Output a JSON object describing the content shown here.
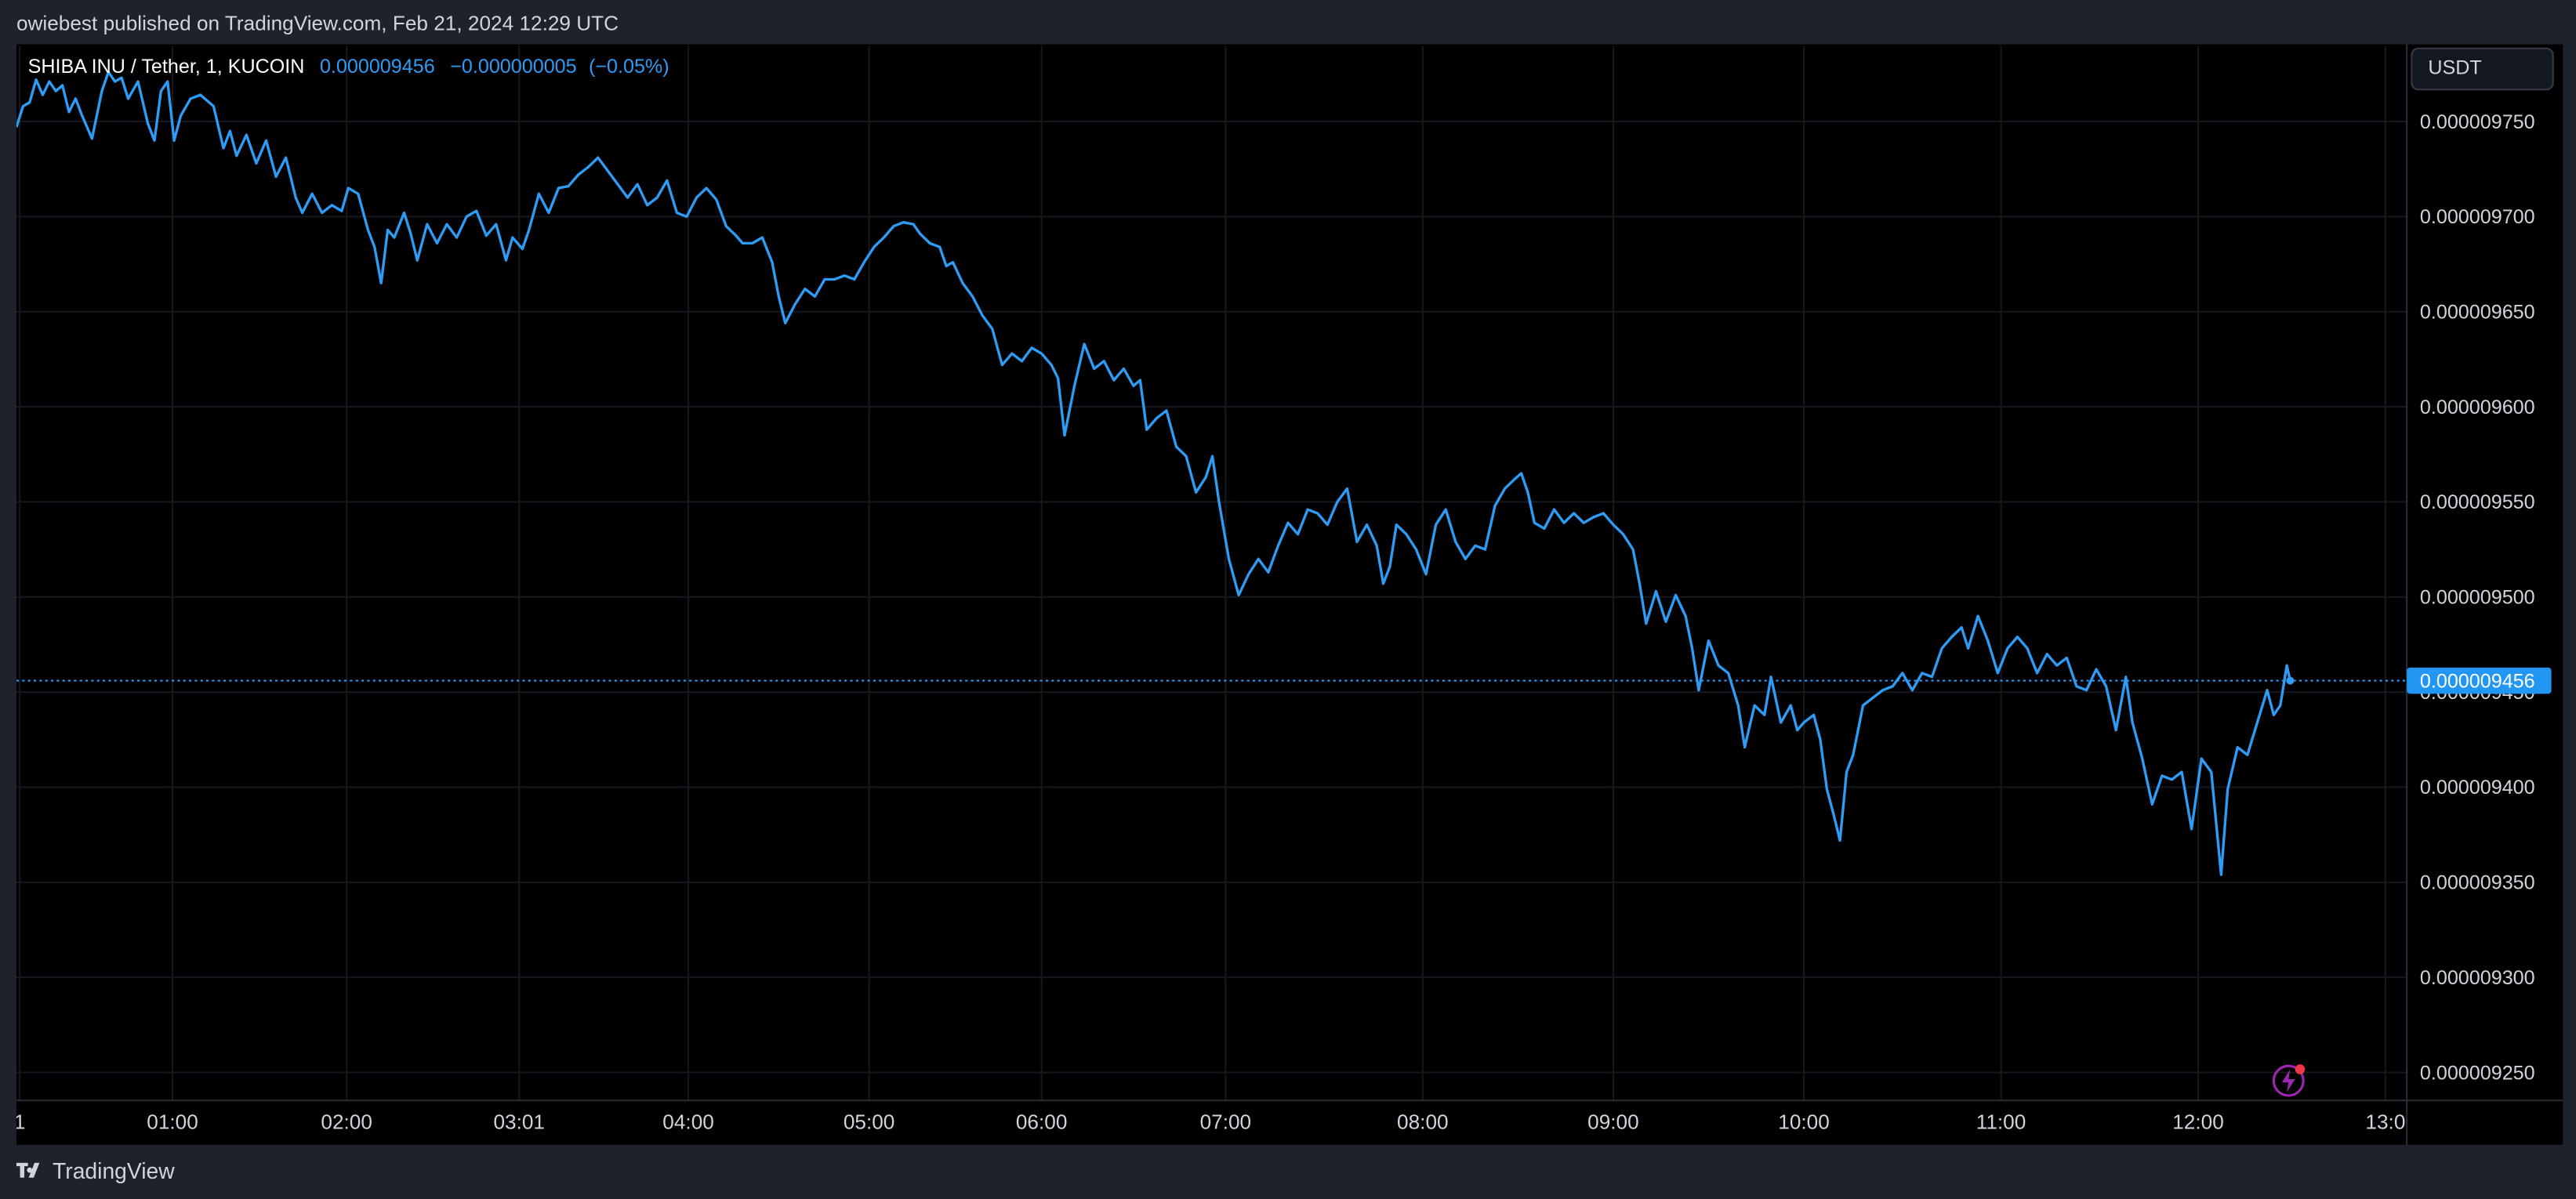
{
  "header": {
    "text": "owiebest published on TradingView.com, Feb 21, 2024 12:29 UTC"
  },
  "footer": {
    "brand": "TradingView"
  },
  "currency": "USDT",
  "chart_data": {
    "type": "line",
    "title": "SHIBA INU / Tether, 1, KUCOIN",
    "last_price": {
      "value": 9.456e-06,
      "label": "0.000009456"
    },
    "change": {
      "value": -5e-09,
      "label": "−0.000000005"
    },
    "change_pct": {
      "value": -0.05,
      "label": "(−0.05%)"
    },
    "color": "#2e9bf5",
    "grid": true,
    "xlim": [
      0,
      727.5
    ],
    "ylim": [
      9.2353e-06,
      9.7897e-06
    ],
    "xticks": [
      {
        "value": 1,
        "label": "1"
      },
      {
        "value": 47.5,
        "label": "01:00"
      },
      {
        "value": 100.5,
        "label": "02:00"
      },
      {
        "value": 153,
        "label": "03:01"
      },
      {
        "value": 204.5,
        "label": "04:00"
      },
      {
        "value": 259.5,
        "label": "05:00"
      },
      {
        "value": 312,
        "label": "06:00"
      },
      {
        "value": 368,
        "label": "07:00"
      },
      {
        "value": 428,
        "label": "08:00"
      },
      {
        "value": 486,
        "label": "09:00"
      },
      {
        "value": 544,
        "label": "10:00"
      },
      {
        "value": 604,
        "label": "11:00"
      },
      {
        "value": 664,
        "label": "12:00"
      },
      {
        "value": 721,
        "label": "13:0"
      }
    ],
    "yticks": [
      {
        "value": 9.25e-06,
        "label": "0.000009250"
      },
      {
        "value": 9.3e-06,
        "label": "0.000009300"
      },
      {
        "value": 9.35e-06,
        "label": "0.000009350"
      },
      {
        "value": 9.4e-06,
        "label": "0.000009400"
      },
      {
        "value": 9.45e-06,
        "label": "0.000009450"
      },
      {
        "value": 9.5e-06,
        "label": "0.000009500"
      },
      {
        "value": 9.55e-06,
        "label": "0.000009550"
      },
      {
        "value": 9.6e-06,
        "label": "0.000009600"
      },
      {
        "value": 9.65e-06,
        "label": "0.000009650"
      },
      {
        "value": 9.7e-06,
        "label": "0.000009700"
      },
      {
        "value": 9.75e-06,
        "label": "0.000009750"
      }
    ],
    "x": [
      0,
      2,
      4,
      6,
      8,
      10,
      12,
      14,
      16,
      18,
      20,
      23,
      26,
      28,
      30,
      32,
      34,
      37,
      40,
      42,
      44,
      46,
      48,
      50,
      53,
      56,
      60,
      63,
      65,
      67,
      70,
      73,
      76,
      79,
      82,
      85,
      87,
      90,
      93,
      96,
      99,
      101,
      104,
      107,
      109,
      111,
      113,
      115,
      118,
      120,
      122,
      125,
      128,
      131,
      134,
      137,
      140,
      143,
      146,
      149,
      151,
      154,
      156,
      159,
      162,
      165,
      168,
      171,
      174,
      177,
      180,
      183,
      186,
      189,
      192,
      195,
      198,
      201,
      204,
      207,
      210,
      213,
      216,
      219,
      221,
      224,
      227,
      230,
      232,
      234,
      237,
      240,
      243,
      246,
      249,
      252,
      255,
      258,
      261,
      264,
      267,
      270,
      273,
      275,
      278,
      281,
      283,
      285,
      288,
      291,
      294,
      297,
      300,
      303,
      306,
      309,
      312,
      315,
      317,
      319,
      322,
      325,
      328,
      331,
      334,
      337,
      340,
      342,
      344,
      347,
      350,
      353,
      356,
      359,
      362,
      364,
      366,
      369,
      372,
      375,
      378,
      381,
      384,
      387,
      390,
      393,
      396,
      399,
      402,
      405,
      408,
      411,
      414,
      416,
      418,
      420,
      423,
      426,
      429,
      432,
      435,
      438,
      441,
      444,
      447,
      450,
      453,
      456,
      458,
      460,
      462,
      465,
      468,
      471,
      474,
      477,
      480,
      483,
      486,
      489,
      492,
      494,
      496,
      499,
      502,
      505,
      508,
      510,
      512,
      515,
      518,
      521,
      524,
      526,
      529,
      532,
      534,
      537,
      540,
      542,
      544,
      547,
      549,
      551,
      553,
      555,
      557,
      559,
      562,
      565,
      568,
      571,
      574,
      577,
      580,
      583,
      586,
      589,
      592,
      594,
      597,
      600,
      603,
      606,
      609,
      612,
      615,
      618,
      621,
      624,
      627,
      630,
      633,
      636,
      639,
      642,
      644,
      647,
      650,
      653,
      656,
      659,
      662,
      665,
      668,
      671,
      673,
      676,
      679,
      682,
      685,
      687,
      689,
      691,
      692
    ],
    "values": [
      9.747e-06,
      9.758e-06,
      9.76e-06,
      9.772e-06,
      9.764e-06,
      9.771e-06,
      9.766e-06,
      9.769e-06,
      9.755e-06,
      9.762e-06,
      9.753e-06,
      9.741e-06,
      9.766e-06,
      9.776e-06,
      9.771e-06,
      9.773e-06,
      9.762e-06,
      9.771e-06,
      9.749e-06,
      9.74e-06,
      9.766e-06,
      9.771e-06,
      9.74e-06,
      9.753e-06,
      9.762e-06,
      9.764e-06,
      9.758e-06,
      9.736e-06,
      9.745e-06,
      9.732e-06,
      9.743e-06,
      9.728e-06,
      9.74e-06,
      9.721e-06,
      9.731e-06,
      9.71e-06,
      9.702e-06,
      9.712e-06,
      9.702e-06,
      9.706e-06,
      9.703e-06,
      9.715e-06,
      9.712e-06,
      9.693e-06,
      9.684e-06,
      9.665e-06,
      9.693e-06,
      9.689e-06,
      9.702e-06,
      9.691e-06,
      9.677e-06,
      9.696e-06,
      9.686e-06,
      9.696e-06,
      9.689e-06,
      9.7e-06,
      9.703e-06,
      9.69e-06,
      9.696e-06,
      9.677e-06,
      9.689e-06,
      9.683e-06,
      9.693e-06,
      9.712e-06,
      9.702e-06,
      9.715e-06,
      9.716e-06,
      9.722e-06,
      9.726e-06,
      9.731e-06,
      9.724e-06,
      9.717e-06,
      9.71e-06,
      9.717e-06,
      9.706e-06,
      9.71e-06,
      9.719e-06,
      9.702e-06,
      9.7e-06,
      9.71e-06,
      9.715e-06,
      9.709e-06,
      9.695e-06,
      9.69e-06,
      9.686e-06,
      9.686e-06,
      9.689e-06,
      9.676e-06,
      9.658e-06,
      9.644e-06,
      9.654e-06,
      9.662e-06,
      9.658e-06,
      9.667e-06,
      9.667e-06,
      9.669e-06,
      9.667e-06,
      9.676e-06,
      9.684e-06,
      9.689e-06,
      9.695e-06,
      9.697e-06,
      9.696e-06,
      9.691e-06,
      9.686e-06,
      9.684e-06,
      9.674e-06,
      9.676e-06,
      9.665e-06,
      9.658e-06,
      9.648e-06,
      9.641e-06,
      9.622e-06,
      9.628e-06,
      9.624e-06,
      9.631e-06,
      9.628e-06,
      9.622e-06,
      9.615e-06,
      9.585e-06,
      9.611e-06,
      9.633e-06,
      9.62e-06,
      9.624e-06,
      9.614e-06,
      9.62e-06,
      9.611e-06,
      9.614e-06,
      9.588e-06,
      9.594e-06,
      9.598e-06,
      9.579e-06,
      9.574e-06,
      9.555e-06,
      9.563e-06,
      9.574e-06,
      9.55e-06,
      9.52e-06,
      9.501e-06,
      9.512e-06,
      9.52e-06,
      9.513e-06,
      9.527e-06,
      9.539e-06,
      9.533e-06,
      9.546e-06,
      9.544e-06,
      9.538e-06,
      9.55e-06,
      9.557e-06,
      9.529e-06,
      9.538e-06,
      9.527e-06,
      9.507e-06,
      9.516e-06,
      9.538e-06,
      9.533e-06,
      9.525e-06,
      9.512e-06,
      9.538e-06,
      9.546e-06,
      9.529e-06,
      9.52e-06,
      9.527e-06,
      9.525e-06,
      9.548e-06,
      9.557e-06,
      9.562e-06,
      9.565e-06,
      9.555e-06,
      9.539e-06,
      9.536e-06,
      9.546e-06,
      9.539e-06,
      9.544e-06,
      9.539e-06,
      9.542e-06,
      9.544e-06,
      9.538e-06,
      9.533e-06,
      9.525e-06,
      9.507e-06,
      9.486e-06,
      9.503e-06,
      9.487e-06,
      9.501e-06,
      9.49e-06,
      9.473e-06,
      9.451e-06,
      9.477e-06,
      9.464e-06,
      9.46e-06,
      9.443e-06,
      9.421e-06,
      9.443e-06,
      9.438e-06,
      9.458e-06,
      9.434e-06,
      9.443e-06,
      9.43e-06,
      9.434e-06,
      9.438e-06,
      9.425e-06,
      9.399e-06,
      9.386e-06,
      9.372e-06,
      9.408e-06,
      9.417e-06,
      9.443e-06,
      9.447e-06,
      9.451e-06,
      9.453e-06,
      9.46e-06,
      9.451e-06,
      9.46e-06,
      9.458e-06,
      9.473e-06,
      9.479e-06,
      9.484e-06,
      9.473e-06,
      9.49e-06,
      9.477e-06,
      9.46e-06,
      9.473e-06,
      9.479e-06,
      9.473e-06,
      9.46e-06,
      9.47e-06,
      9.464e-06,
      9.468e-06,
      9.453e-06,
      9.451e-06,
      9.462e-06,
      9.453e-06,
      9.43e-06,
      9.458e-06,
      9.434e-06,
      9.415e-06,
      9.391e-06,
      9.406e-06,
      9.404e-06,
      9.408e-06,
      9.378e-06,
      9.415e-06,
      9.408e-06,
      9.354e-06,
      9.399e-06,
      9.421e-06,
      9.417e-06,
      9.434e-06,
      9.451e-06,
      9.438e-06,
      9.443e-06,
      9.464e-06,
      9.456e-06
    ]
  }
}
